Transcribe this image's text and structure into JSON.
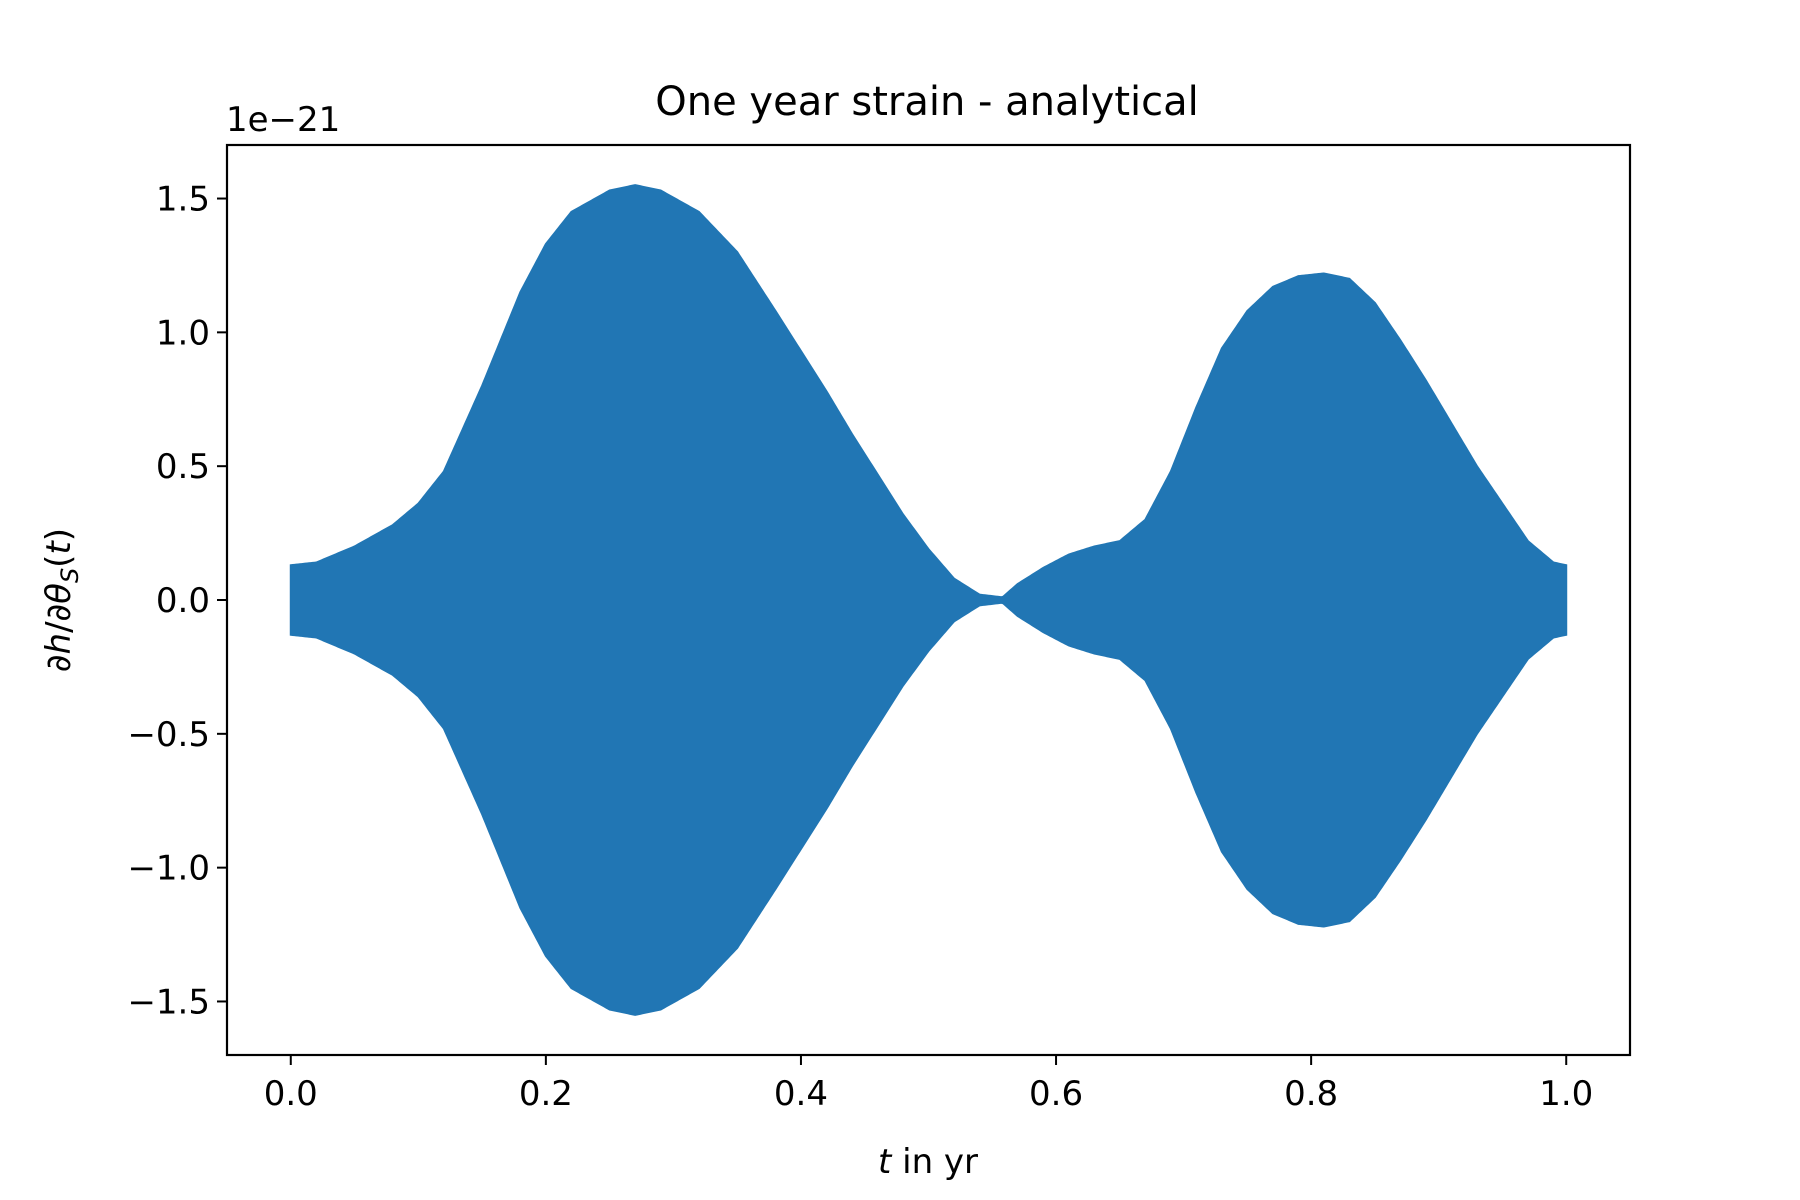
{
  "chart_data": {
    "type": "area",
    "title": "One year strain - analytical",
    "xlabel_italic": "t",
    "xlabel_rest": " in yr",
    "ylabel": "∂h/∂θS(t)",
    "ylabel_parts": {
      "lead": "∂",
      "h": "h",
      "slash": "/∂",
      "theta": "θ",
      "sub": "S",
      "open": "(",
      "t": "t",
      "close": ")"
    },
    "y_offset_label": "1e−21",
    "xlim": [
      -0.05,
      1.05
    ],
    "ylim": [
      -1.7,
      1.7
    ],
    "xticks": [
      0.0,
      0.2,
      0.4,
      0.6,
      0.8,
      1.0
    ],
    "xtick_labels": [
      "0.0",
      "0.2",
      "0.4",
      "0.6",
      "0.8",
      "1.0"
    ],
    "yticks": [
      -1.5,
      -1.0,
      -0.5,
      0.0,
      0.5,
      1.0,
      1.5
    ],
    "ytick_labels": [
      "−1.5",
      "−1.0",
      "−0.5",
      "0.0",
      "0.5",
      "1.0",
      "1.5"
    ],
    "grid": false,
    "series": [
      {
        "color": "#2176b4",
        "envelope_t": [
          0.0,
          0.02,
          0.05,
          0.08,
          0.1,
          0.12,
          0.15,
          0.18,
          0.2,
          0.22,
          0.25,
          0.27,
          0.29,
          0.32,
          0.35,
          0.38,
          0.4,
          0.42,
          0.44,
          0.46,
          0.48,
          0.5,
          0.52,
          0.54,
          0.558,
          0.57,
          0.59,
          0.61,
          0.63,
          0.65,
          0.67,
          0.69,
          0.71,
          0.73,
          0.75,
          0.77,
          0.79,
          0.81,
          0.83,
          0.85,
          0.87,
          0.89,
          0.91,
          0.93,
          0.95,
          0.97,
          0.99,
          1.0
        ],
        "envelope_amplitude": [
          0.13,
          0.14,
          0.2,
          0.28,
          0.36,
          0.48,
          0.8,
          1.15,
          1.33,
          1.45,
          1.53,
          1.55,
          1.53,
          1.45,
          1.3,
          1.08,
          0.93,
          0.78,
          0.62,
          0.47,
          0.32,
          0.19,
          0.08,
          0.02,
          0.01,
          0.06,
          0.12,
          0.17,
          0.2,
          0.22,
          0.3,
          0.48,
          0.72,
          0.94,
          1.08,
          1.17,
          1.21,
          1.22,
          1.2,
          1.11,
          0.97,
          0.82,
          0.66,
          0.5,
          0.36,
          0.22,
          0.14,
          0.13
        ]
      }
    ]
  }
}
